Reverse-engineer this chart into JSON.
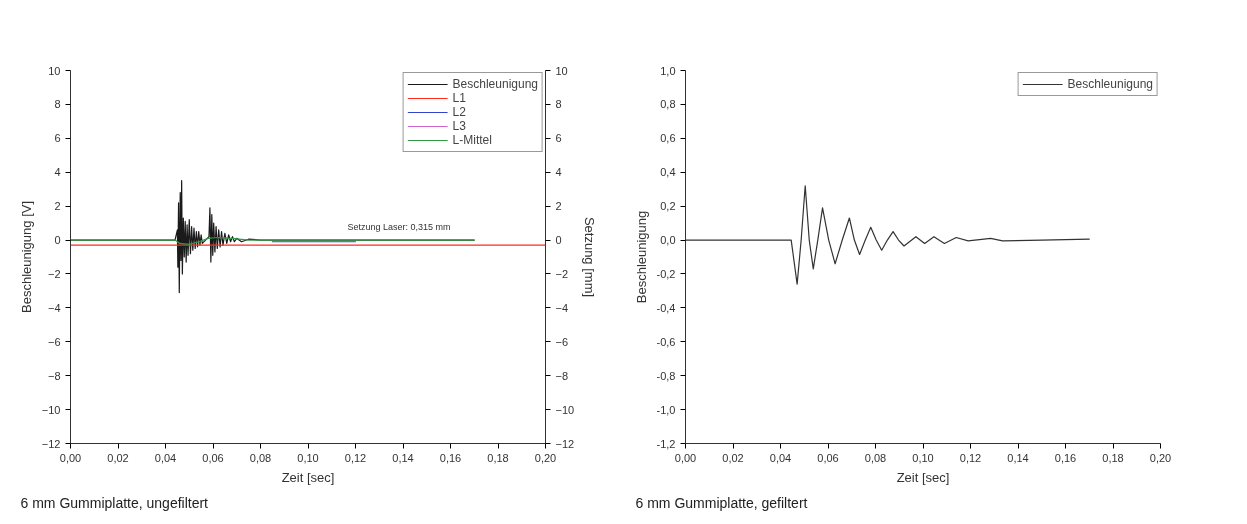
{
  "chart_data": [
    {
      "type": "line",
      "xlabel": "Zeit [sec]",
      "ylabel": "Beschleunigung [V]",
      "y2label": "Setzung [mm]",
      "xlim": [
        0,
        0.2
      ],
      "xticks": [
        {
          "value": 0,
          "label": "0,00"
        },
        {
          "value": 0.02,
          "label": "0,02"
        },
        {
          "value": 0.04,
          "label": "0,04"
        },
        {
          "value": 0.06,
          "label": "0,06"
        },
        {
          "value": 0.08,
          "label": "0,08"
        },
        {
          "value": 0.1,
          "label": "0,10"
        },
        {
          "value": 0.12,
          "label": "0,12"
        },
        {
          "value": 0.14,
          "label": "0,14"
        },
        {
          "value": 0.16,
          "label": "0,16"
        },
        {
          "value": 0.18,
          "label": "0,18"
        },
        {
          "value": 0.2,
          "label": "0,20"
        }
      ],
      "ylim": [
        -12,
        10
      ],
      "yticks": [
        -12,
        -10,
        -8,
        -6,
        -4,
        -2,
        0,
        2,
        4,
        6,
        8,
        10
      ],
      "y2lim": [
        -12,
        10
      ],
      "y2ticks": [
        -12,
        -10,
        -8,
        -6,
        -4,
        -2,
        0,
        2,
        4,
        6,
        8,
        10
      ],
      "legend": "top right",
      "grid": false,
      "line_style": "solid",
      "marker": "none",
      "series": [
        {
          "name": "Beschleunigung",
          "color": "#1a1a1a",
          "x": [
            0,
            0.044,
            0.045,
            0.0452,
            0.0455,
            0.0458,
            0.0462,
            0.0465,
            0.0468,
            0.0471,
            0.0475,
            0.0479,
            0.0483,
            0.0487,
            0.0491,
            0.0495,
            0.05,
            0.0505,
            0.051,
            0.0515,
            0.052,
            0.0525,
            0.053,
            0.0535,
            0.054,
            0.0545,
            0.055,
            0.0555,
            0.0583,
            0.0587,
            0.0591,
            0.0595,
            0.0599,
            0.0603,
            0.0608,
            0.0613,
            0.0618,
            0.0624,
            0.063,
            0.0636,
            0.0642,
            0.065,
            0.0658,
            0.0666,
            0.0674,
            0.0682,
            0.069,
            0.07,
            0.072,
            0.075,
            0.08,
            0.17
          ],
          "values": [
            0,
            0,
            0.6,
            -1.6,
            2.2,
            -3.1,
            2.8,
            -1.2,
            3.5,
            -2.0,
            1.3,
            -1.0,
            1.1,
            -1.3,
            0.9,
            -0.9,
            1.2,
            -0.8,
            0.8,
            -0.6,
            0.7,
            -0.5,
            0.5,
            -0.4,
            0.5,
            -0.3,
            0.3,
            -0.2,
            0.2,
            1.9,
            -1.3,
            1.5,
            -0.9,
            1.0,
            -0.7,
            0.8,
            -0.5,
            0.6,
            -0.4,
            0.5,
            -0.3,
            0.4,
            -0.2,
            0.3,
            -0.1,
            0.2,
            -0.1,
            0.1,
            -0.1,
            0.05,
            0,
            0
          ]
        },
        {
          "name": "L1",
          "color": "#ff2a1a",
          "x": [
            0,
            0.2
          ],
          "values": [
            -0.3,
            -0.3
          ]
        },
        {
          "name": "L2",
          "color": "#3344cc",
          "x": [
            0.085,
            0.09,
            0.1,
            0.11,
            0.12
          ],
          "values": [
            -0.1,
            -0.1,
            -0.1,
            -0.1,
            -0.1
          ]
        },
        {
          "name": "L3",
          "color": "#cc66cc"
        },
        {
          "name": "L-Mittel",
          "color": "#339944",
          "x": [
            0,
            0.044,
            0.046,
            0.05,
            0.054,
            0.058,
            0.062,
            0.068,
            0.075,
            0.17
          ],
          "values": [
            0,
            0,
            -0.2,
            -0.25,
            -0.1,
            0.1,
            0.15,
            0.1,
            0,
            0
          ]
        }
      ],
      "annotations": [
        "Setzung Laser: 0,315 mm",
        "6 mm Gummiplatte, ungefiltert"
      ]
    },
    {
      "type": "line",
      "xlabel": "Zeit [sec]",
      "ylabel": "Beschleunigung",
      "xlim": [
        0,
        0.2
      ],
      "xticks": [
        {
          "value": 0,
          "label": "0,00"
        },
        {
          "value": 0.02,
          "label": "0,02"
        },
        {
          "value": 0.04,
          "label": "0,04"
        },
        {
          "value": 0.06,
          "label": "0,06"
        },
        {
          "value": 0.08,
          "label": "0,08"
        },
        {
          "value": 0.1,
          "label": "0,10"
        },
        {
          "value": 0.12,
          "label": "0,12"
        },
        {
          "value": 0.14,
          "label": "0,14"
        },
        {
          "value": 0.16,
          "label": "0,16"
        },
        {
          "value": 0.18,
          "label": "0,18"
        },
        {
          "value": 0.2,
          "label": "0,20"
        }
      ],
      "ylim": [
        -1.2,
        1.0
      ],
      "yticks": [
        {
          "value": -1.2,
          "label": "-1,2"
        },
        {
          "value": -1.0,
          "label": "-1,0"
        },
        {
          "value": -0.8,
          "label": "-0,8"
        },
        {
          "value": -0.6,
          "label": "-0,6"
        },
        {
          "value": -0.4,
          "label": "-0,4"
        },
        {
          "value": -0.2,
          "label": "-0,2"
        },
        {
          "value": 0,
          "label": "0,0"
        },
        {
          "value": 0.2,
          "label": "0,2"
        },
        {
          "value": 0.4,
          "label": "0,4"
        },
        {
          "value": 0.6,
          "label": "0,6"
        },
        {
          "value": 0.8,
          "label": "0,8"
        },
        {
          "value": 1.0,
          "label": "1,0"
        }
      ],
      "legend": "top right",
      "grid": false,
      "line_style": "solid",
      "marker": "none",
      "series": [
        {
          "name": "Beschleunigung",
          "color": "#333333",
          "x": [
            0,
            0.01,
            0.02,
            0.03,
            0.04,
            0.0445,
            0.047,
            0.0487,
            0.0504,
            0.0521,
            0.0538,
            0.0557,
            0.0577,
            0.0603,
            0.063,
            0.066,
            0.069,
            0.0711,
            0.0733,
            0.0757,
            0.078,
            0.0803,
            0.0826,
            0.085,
            0.0874,
            0.0897,
            0.092,
            0.097,
            0.1007,
            0.1046,
            0.109,
            0.114,
            0.119,
            0.1285,
            0.1335,
            0.15,
            0.17
          ],
          "values": [
            0,
            0,
            0,
            0,
            0,
            0,
            -0.26,
            0,
            0.32,
            0,
            -0.17,
            0,
            0.19,
            0,
            -0.14,
            0,
            0.13,
            0,
            -0.085,
            0,
            0.075,
            0,
            -0.06,
            0,
            0.05,
            0,
            -0.035,
            0.02,
            -0.02,
            0.02,
            -0.02,
            0.015,
            -0.005,
            0.01,
            -0.005,
            0,
            0.005
          ]
        }
      ],
      "annotations": [
        "6 mm Gummiplatte, gefiltert"
      ]
    }
  ]
}
